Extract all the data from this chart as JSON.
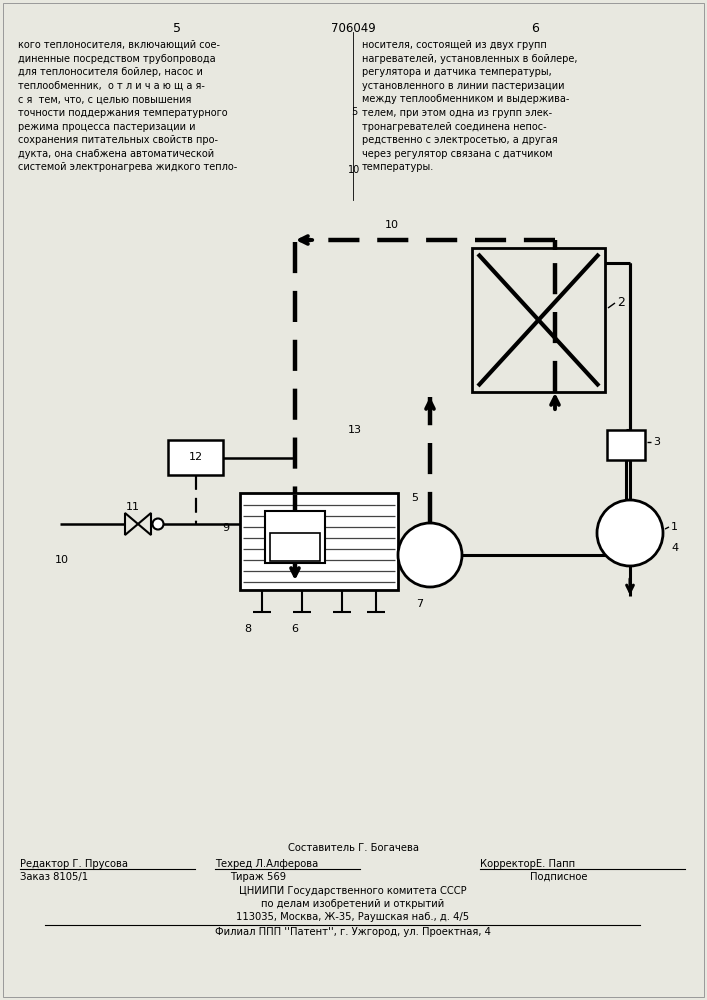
{
  "bg_color": "#e8e8e0",
  "title_center": "706049",
  "page_left": "5",
  "page_right": "6",
  "text_left": "кого теплоносителя, включающий сое-\nдиненные посредством трубопровода\nдля теплоносителя бойлер, насос и\nтеплообменник,  о т л и ч а ю щ а я-\nс я  тем, что, с целью повышения\nточности поддержания температурного\nрежима процесса пастеризации и\nсохранения питательных свойств про-\nдукта, она снабжена автоматической\nсистемой электронагрева жидкого тепло-",
  "text_right": "носителя, состоящей из двух групп\nнагревателей, установленных в бойлере,\nрегулятора и датчика температуры,\nустановленного в линии пастеризации\nмежду теплообменником и выдержива-\nтелем, при этом одна из групп элек-\nтронагревателей соединена непос-\nредственно с электросетью, а другая\nчерез регулятор связана с датчиком\nтемпературы.",
  "footer_line1": "Составитель Г. Богачева",
  "footer_line2_left": "Редактор Г. Прусова",
  "footer_line2_mid": "Техред Л.Алферова",
  "footer_line2_right": "КорректорЕ. Папп",
  "footer_line3_left": "Заказ 8105/1",
  "footer_line3_mid": "Тираж 569",
  "footer_line3_right": "Подписное",
  "footer_line4": "ЦНИИПИ Государственного комитета СССР",
  "footer_line5": "по делам изобретений и открытий",
  "footer_line6": "113035, Москва, Ж-35, Раушская наб., д. 4/5",
  "footer_line7": "Филиал ППП ''Патент'', г. Ужгород, ул. Проектная, 4"
}
